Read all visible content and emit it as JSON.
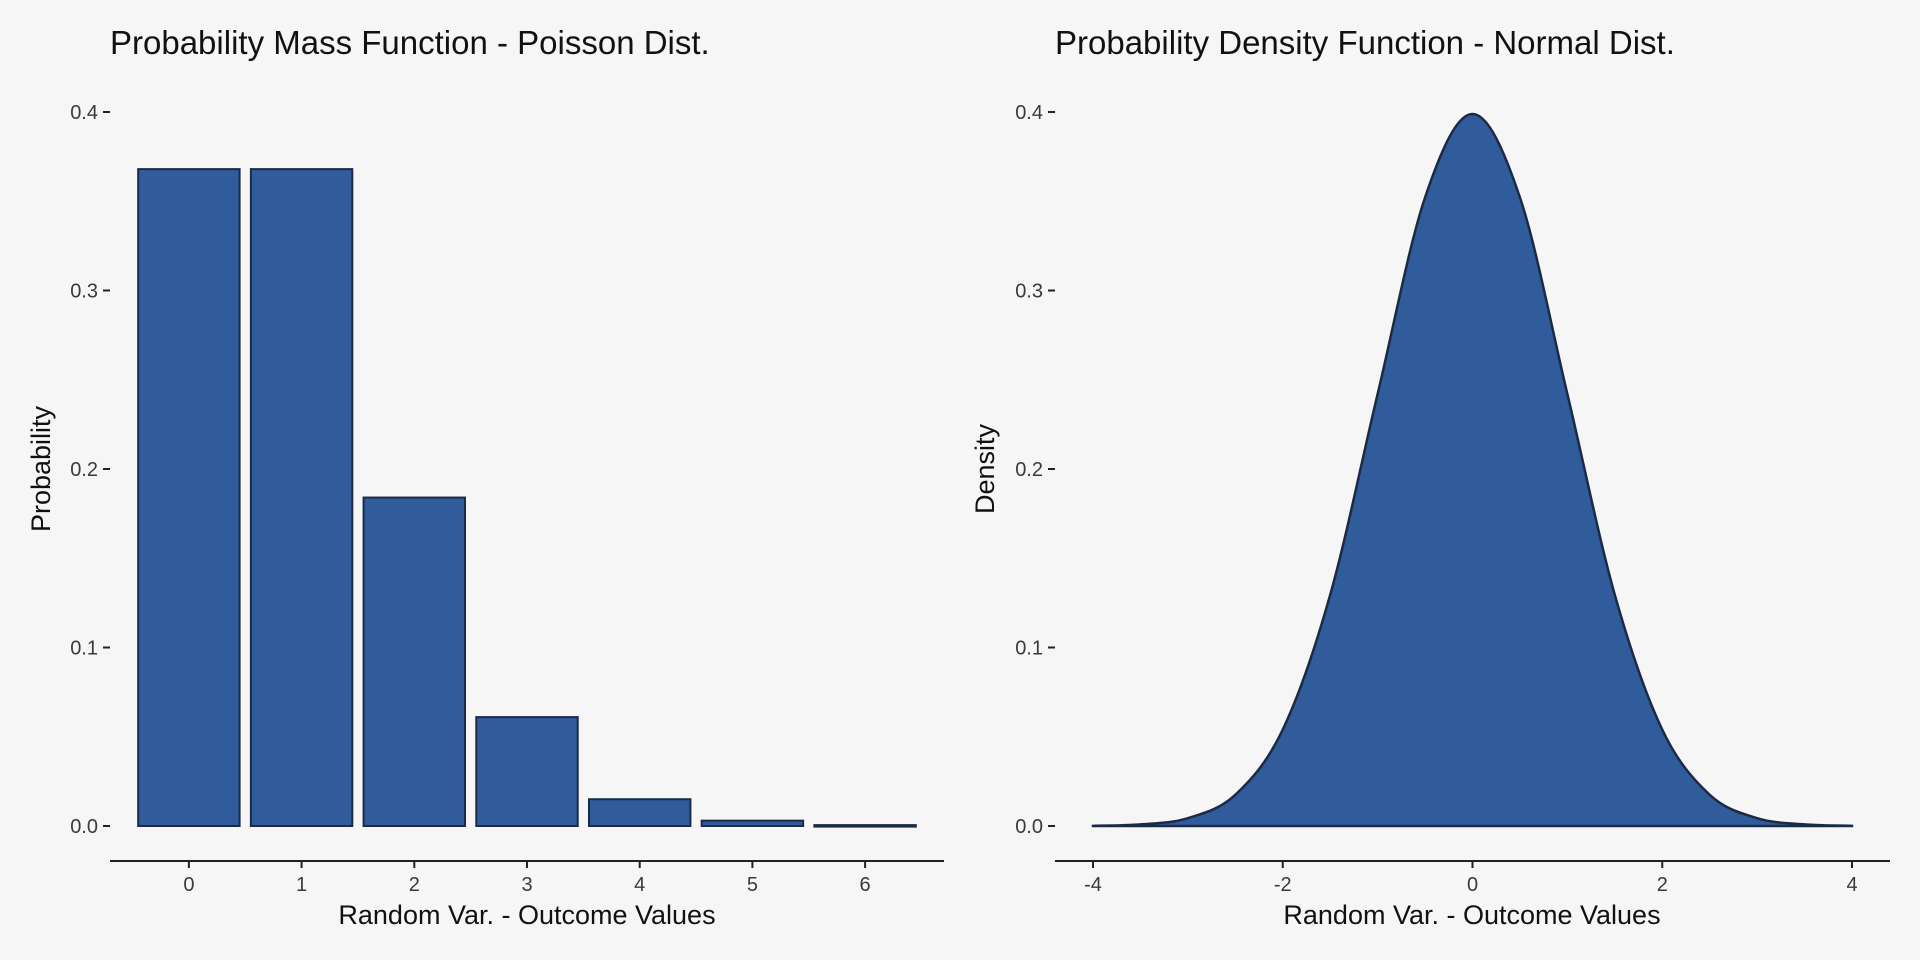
{
  "colors": {
    "background": "#f7f6f7",
    "fill": "#305c9c",
    "outline": "#1b2a45"
  },
  "chart_data": [
    {
      "type": "bar",
      "title": "Probability Mass Function - Poisson Dist.",
      "xlabel": "Random Var. - Outcome Values",
      "ylabel": "Probability",
      "categories": [
        "0",
        "1",
        "2",
        "3",
        "4",
        "5",
        "6"
      ],
      "values": [
        0.368,
        0.368,
        0.184,
        0.061,
        0.015,
        0.003,
        0.0005
      ],
      "ylim": [
        0,
        0.4
      ],
      "yticks": [
        "0.0",
        "0.1",
        "0.2",
        "0.3",
        "0.4"
      ],
      "grid": false
    },
    {
      "type": "area",
      "title": "Probability Density Function - Normal Dist.",
      "xlabel": "Random Var. - Outcome Values",
      "ylabel": "Density",
      "x": [
        -4,
        -3.5,
        -3,
        -2.5,
        -2,
        -1.5,
        -1,
        -0.5,
        0,
        0.5,
        1,
        1.5,
        2,
        2.5,
        3,
        3.5,
        4
      ],
      "y": [
        0.0001,
        0.0009,
        0.0044,
        0.0175,
        0.054,
        0.1295,
        0.242,
        0.3521,
        0.3989,
        0.3521,
        0.242,
        0.1295,
        0.054,
        0.0175,
        0.0044,
        0.0009,
        0.0001
      ],
      "xlim": [
        -4,
        4
      ],
      "ylim": [
        0,
        0.4
      ],
      "xticks": [
        "-4",
        "-2",
        "0",
        "2",
        "4"
      ],
      "yticks": [
        "0.0",
        "0.1",
        "0.2",
        "0.3",
        "0.4"
      ],
      "grid": false
    }
  ]
}
